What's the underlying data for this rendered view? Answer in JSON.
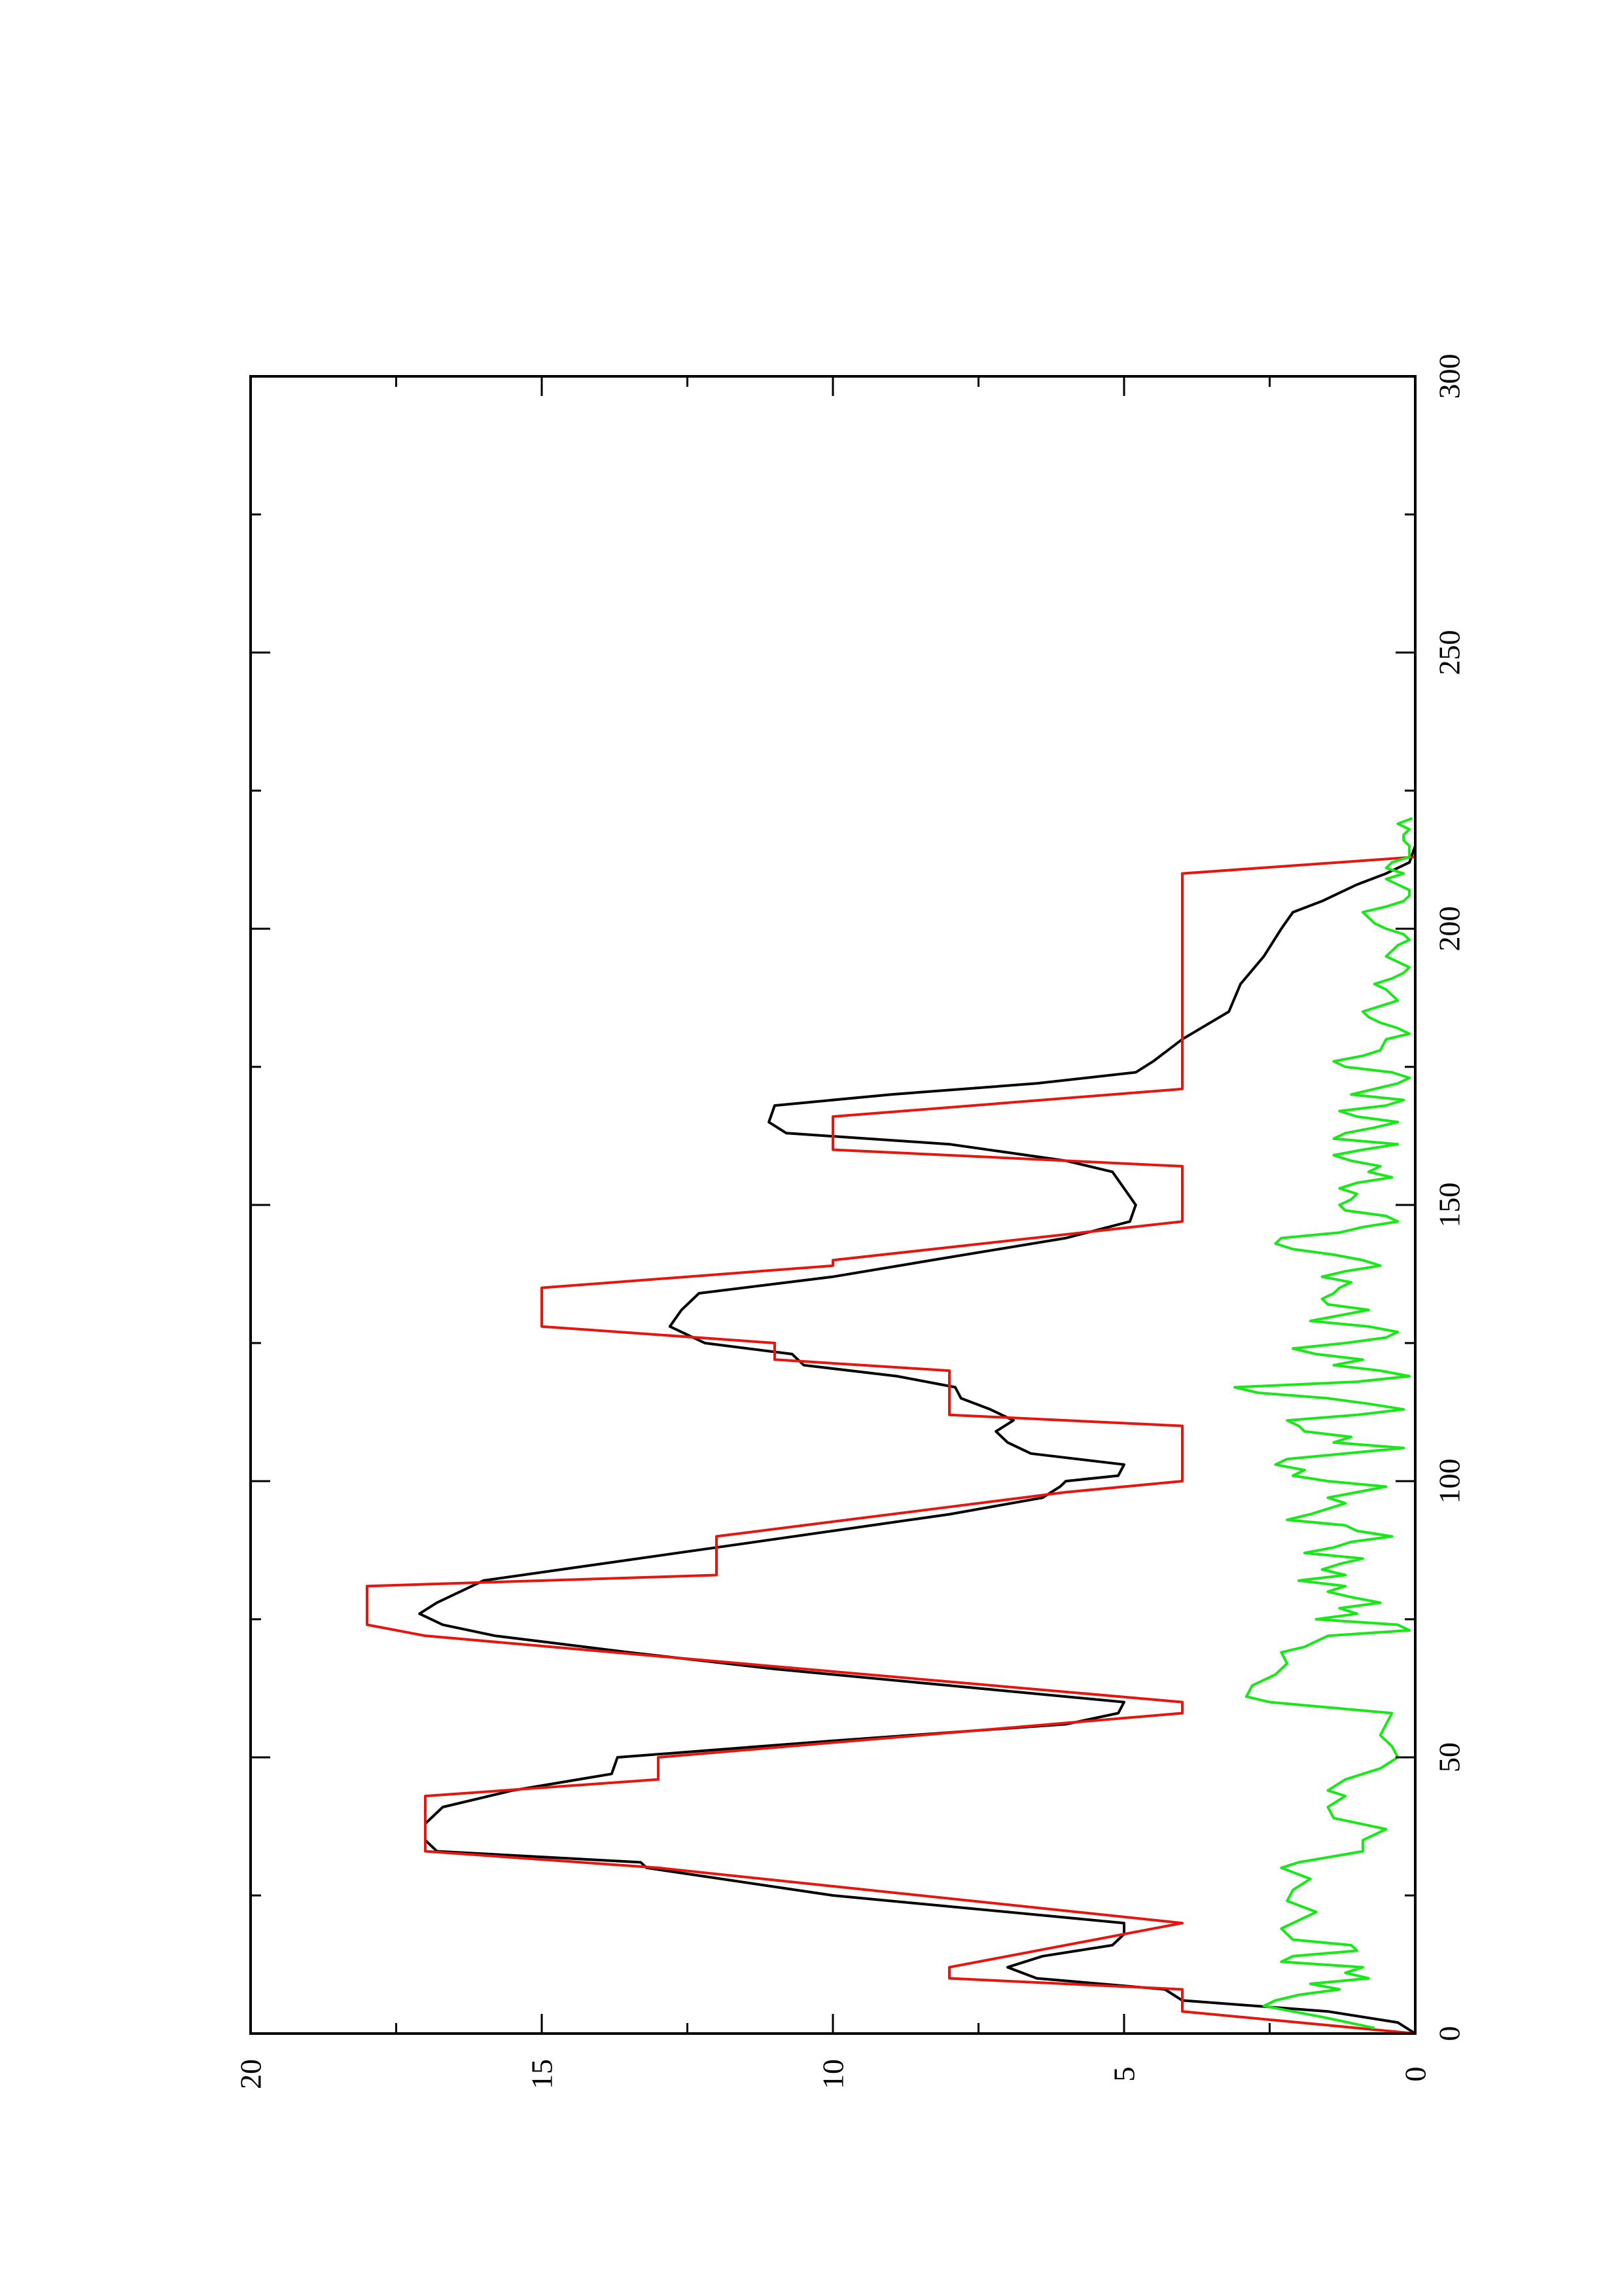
{
  "chart_data": {
    "type": "line",
    "orientation": "rotated-90-ccw",
    "title": "",
    "xlabel": "",
    "ylabel": "",
    "xlim": [
      0,
      300
    ],
    "ylim": [
      0,
      20
    ],
    "x_ticks": [
      "0",
      "50",
      "100",
      "150",
      "200",
      "250",
      "300"
    ],
    "y_ticks": [
      "0",
      "5",
      "10",
      "15",
      "20"
    ],
    "grid": false,
    "legend": "none",
    "series": [
      {
        "color": "#000000",
        "points": [
          [
            0,
            0
          ],
          [
            2,
            0.3
          ],
          [
            4,
            1.5
          ],
          [
            6,
            4
          ],
          [
            8,
            4.3
          ],
          [
            10,
            6.5
          ],
          [
            12,
            7
          ],
          [
            14,
            6.4
          ],
          [
            16,
            5.2
          ],
          [
            18,
            5
          ],
          [
            20,
            5
          ],
          [
            25,
            10
          ],
          [
            30,
            13.2
          ],
          [
            31,
            13.3
          ],
          [
            33,
            16.8
          ],
          [
            35,
            17
          ],
          [
            38,
            17
          ],
          [
            41,
            16.7
          ],
          [
            44,
            15.5
          ],
          [
            47,
            13.8
          ],
          [
            50,
            13.7
          ],
          [
            53,
            10
          ],
          [
            56,
            6
          ],
          [
            58,
            5.1
          ],
          [
            60,
            5
          ],
          [
            63,
            8
          ],
          [
            66,
            11
          ],
          [
            69,
            13.5
          ],
          [
            72,
            15.8
          ],
          [
            74,
            16.7
          ],
          [
            76,
            17.1
          ],
          [
            78,
            16.8
          ],
          [
            80,
            16.4
          ],
          [
            82,
            16
          ],
          [
            85,
            14
          ],
          [
            88,
            12
          ],
          [
            91,
            10
          ],
          [
            94,
            8
          ],
          [
            97,
            6.4
          ],
          [
            99,
            6.1
          ],
          [
            100,
            6
          ],
          [
            101,
            5.1
          ],
          [
            103,
            5
          ],
          [
            105,
            6.6
          ],
          [
            107,
            7
          ],
          [
            109,
            7.2
          ],
          [
            111,
            6.9
          ],
          [
            113,
            7.3
          ],
          [
            115,
            7.8
          ],
          [
            117,
            7.9
          ],
          [
            119,
            8.9
          ],
          [
            121,
            10.5
          ],
          [
            123,
            10.7
          ],
          [
            125,
            12.2
          ],
          [
            128,
            12.8
          ],
          [
            131,
            12.6
          ],
          [
            134,
            12.3
          ],
          [
            137,
            10
          ],
          [
            140,
            8.3
          ],
          [
            144,
            6
          ],
          [
            147,
            4.9
          ],
          [
            150,
            4.8
          ],
          [
            153,
            5
          ],
          [
            156,
            5.2
          ],
          [
            158,
            6
          ],
          [
            161,
            8
          ],
          [
            163,
            10.8
          ],
          [
            165,
            11.1
          ],
          [
            168,
            11
          ],
          [
            170,
            9
          ],
          [
            172,
            6.5
          ],
          [
            174,
            4.8
          ],
          [
            176,
            4.5
          ],
          [
            180,
            4
          ],
          [
            185,
            3.2
          ],
          [
            190,
            3
          ],
          [
            195,
            2.6
          ],
          [
            200,
            2.3
          ],
          [
            203,
            2.1
          ],
          [
            205,
            1.6
          ],
          [
            208,
            1
          ],
          [
            210,
            0.5
          ],
          [
            212,
            0.1
          ],
          [
            215,
            0
          ],
          [
            220,
            0
          ]
        ]
      },
      {
        "color": "#e8140e",
        "points": [
          [
            0,
            0
          ],
          [
            4,
            4
          ],
          [
            8,
            4
          ],
          [
            10,
            8
          ],
          [
            12,
            8
          ],
          [
            20,
            4
          ],
          [
            30,
            13
          ],
          [
            33,
            17
          ],
          [
            43,
            17
          ],
          [
            46,
            13
          ],
          [
            50,
            13
          ],
          [
            58,
            4
          ],
          [
            60,
            4
          ],
          [
            72,
            17
          ],
          [
            74,
            18
          ],
          [
            81,
            18
          ],
          [
            83,
            12
          ],
          [
            90,
            12
          ],
          [
            98,
            6
          ],
          [
            100,
            4
          ],
          [
            110,
            4
          ],
          [
            112,
            8
          ],
          [
            120,
            8
          ],
          [
            122,
            11
          ],
          [
            125,
            11
          ],
          [
            128,
            15
          ],
          [
            135,
            15
          ],
          [
            139,
            10
          ],
          [
            140,
            10
          ],
          [
            147,
            4
          ],
          [
            157,
            4
          ],
          [
            160,
            10
          ],
          [
            166,
            10
          ],
          [
            171,
            4
          ],
          [
            175,
            4
          ],
          [
            210,
            4
          ],
          [
            213,
            0
          ],
          [
            220,
            0
          ]
        ]
      },
      {
        "color": "#18e818",
        "points": [
          [
            1,
            0.7
          ],
          [
            3,
            1.6
          ],
          [
            5,
            2.6
          ],
          [
            6,
            2.4
          ],
          [
            7,
            2
          ],
          [
            8,
            1.3
          ],
          [
            9,
            1.8
          ],
          [
            10,
            0.8
          ],
          [
            11,
            1.2
          ],
          [
            12,
            0.9
          ],
          [
            13,
            2.3
          ],
          [
            14,
            2.1
          ],
          [
            15,
            1
          ],
          [
            16,
            1.1
          ],
          [
            17,
            2.1
          ],
          [
            18,
            2.2
          ],
          [
            19,
            2.3
          ],
          [
            20,
            2.1
          ],
          [
            22,
            1.7
          ],
          [
            24,
            2.2
          ],
          [
            26,
            2.1
          ],
          [
            28,
            1.8
          ],
          [
            30,
            2.3
          ],
          [
            31,
            2
          ],
          [
            33,
            0.9
          ],
          [
            35,
            0.9
          ],
          [
            37,
            0.5
          ],
          [
            39,
            1.4
          ],
          [
            41,
            1.5
          ],
          [
            43,
            1.2
          ],
          [
            44,
            1.5
          ],
          [
            46,
            1.2
          ],
          [
            47,
            0.9
          ],
          [
            48,
            0.6
          ],
          [
            50,
            0.3
          ],
          [
            52,
            0.4
          ],
          [
            54,
            0.6
          ],
          [
            56,
            0.5
          ],
          [
            58,
            0.4
          ],
          [
            60,
            2.5
          ],
          [
            61,
            2.9
          ],
          [
            63,
            2.8
          ],
          [
            65,
            2.4
          ],
          [
            67,
            2.2
          ],
          [
            69,
            2.3
          ],
          [
            70,
            1.9
          ],
          [
            72,
            1.5
          ],
          [
            73,
            0.1
          ],
          [
            74,
            0.3
          ],
          [
            75,
            1.7
          ],
          [
            76,
            1
          ],
          [
            77,
            1.3
          ],
          [
            78,
            0.6
          ],
          [
            79,
            1.1
          ],
          [
            80,
            1.5
          ],
          [
            81,
            1.2
          ],
          [
            82,
            2
          ],
          [
            83,
            1.2
          ],
          [
            84,
            1.6
          ],
          [
            85,
            1.3
          ],
          [
            86,
            0.9
          ],
          [
            87,
            1.9
          ],
          [
            88,
            1.4
          ],
          [
            89,
            1.1
          ],
          [
            90,
            0.4
          ],
          [
            91,
            1
          ],
          [
            92,
            1.2
          ],
          [
            93,
            2.2
          ],
          [
            94,
            1.8
          ],
          [
            95,
            1.5
          ],
          [
            96,
            1.2
          ],
          [
            97,
            1.5
          ],
          [
            98,
            1
          ],
          [
            99,
            0.5
          ],
          [
            100,
            1.5
          ],
          [
            101,
            2.1
          ],
          [
            102,
            1.9
          ],
          [
            103,
            2.4
          ],
          [
            104,
            2.2
          ],
          [
            105,
            1.2
          ],
          [
            106,
            0.2
          ],
          [
            107,
            1.4
          ],
          [
            108,
            1.1
          ],
          [
            109,
            1.9
          ],
          [
            110,
            2
          ],
          [
            111,
            2.2
          ],
          [
            112,
            1
          ],
          [
            113,
            0.2
          ],
          [
            114,
            0.8
          ],
          [
            115,
            1.5
          ],
          [
            116,
            2.7
          ],
          [
            117,
            3.1
          ],
          [
            118,
            1
          ],
          [
            119,
            0.1
          ],
          [
            120,
            0.6
          ],
          [
            121,
            1.4
          ],
          [
            122,
            0.9
          ],
          [
            123,
            1.7
          ],
          [
            124,
            2.1
          ],
          [
            125,
            1.2
          ],
          [
            126,
            0.5
          ],
          [
            127,
            0.3
          ],
          [
            128,
            0.8
          ],
          [
            129,
            1.8
          ],
          [
            130,
            1.3
          ],
          [
            131,
            0.8
          ],
          [
            132,
            1.5
          ],
          [
            133,
            1.6
          ],
          [
            134,
            1.4
          ],
          [
            135,
            1.3
          ],
          [
            136,
            1.1
          ],
          [
            137,
            1.6
          ],
          [
            138,
            1.2
          ],
          [
            139,
            0.6
          ],
          [
            140,
            0.9
          ],
          [
            141,
            1.4
          ],
          [
            142,
            2.1
          ],
          [
            143,
            2.4
          ],
          [
            144,
            2.3
          ],
          [
            145,
            1.3
          ],
          [
            146,
            0.9
          ],
          [
            147,
            0.3
          ],
          [
            148,
            0.5
          ],
          [
            149,
            1.2
          ],
          [
            150,
            1.3
          ],
          [
            151,
            1.1
          ],
          [
            152,
            1
          ],
          [
            153,
            1.3
          ],
          [
            154,
            1
          ],
          [
            155,
            0.4
          ],
          [
            156,
            0.8
          ],
          [
            157,
            0.6
          ],
          [
            158,
            1.1
          ],
          [
            159,
            1.4
          ],
          [
            160,
            0.9
          ],
          [
            161,
            0.3
          ],
          [
            162,
            1.4
          ],
          [
            163,
            1.2
          ],
          [
            164,
            0.7
          ],
          [
            165,
            0.3
          ],
          [
            166,
            1
          ],
          [
            167,
            1.3
          ],
          [
            168,
            0.5
          ],
          [
            169,
            0.2
          ],
          [
            170,
            1.1
          ],
          [
            171,
            0.7
          ],
          [
            172,
            0.3
          ],
          [
            173,
            0.1
          ],
          [
            174,
            0.4
          ],
          [
            175,
            1.2
          ],
          [
            176,
            1.4
          ],
          [
            177,
            0.9
          ],
          [
            178,
            0.6
          ],
          [
            180,
            0.5
          ],
          [
            181,
            0.1
          ],
          [
            182,
            0.3
          ],
          [
            183,
            0.6
          ],
          [
            184,
            0.8
          ],
          [
            185,
            0.9
          ],
          [
            186,
            0.6
          ],
          [
            187,
            0.3
          ],
          [
            188,
            0.4
          ],
          [
            189,
            0.5
          ],
          [
            190,
            0.7
          ],
          [
            191,
            0.4
          ],
          [
            192,
            0.2
          ],
          [
            193,
            0.1
          ],
          [
            194,
            0.3
          ],
          [
            195,
            0.5
          ],
          [
            196,
            0.4
          ],
          [
            197,
            0.3
          ],
          [
            198,
            0.1
          ],
          [
            199,
            0.2
          ],
          [
            200,
            0.5
          ],
          [
            201,
            0.7
          ],
          [
            202,
            0.8
          ],
          [
            203,
            0.9
          ],
          [
            204,
            0.5
          ],
          [
            205,
            0.2
          ],
          [
            206,
            0.1
          ],
          [
            207,
            0.1
          ],
          [
            208,
            0.3
          ],
          [
            209,
            0.5
          ],
          [
            210,
            0.2
          ],
          [
            211,
            0.5
          ],
          [
            212,
            0.4
          ],
          [
            213,
            0.1
          ],
          [
            214,
            0.1
          ],
          [
            215,
            0.1
          ],
          [
            216,
            0.2
          ],
          [
            217,
            0.2
          ],
          [
            218,
            0.1
          ],
          [
            219,
            0.3
          ],
          [
            220,
            0.05
          ]
        ]
      }
    ]
  }
}
